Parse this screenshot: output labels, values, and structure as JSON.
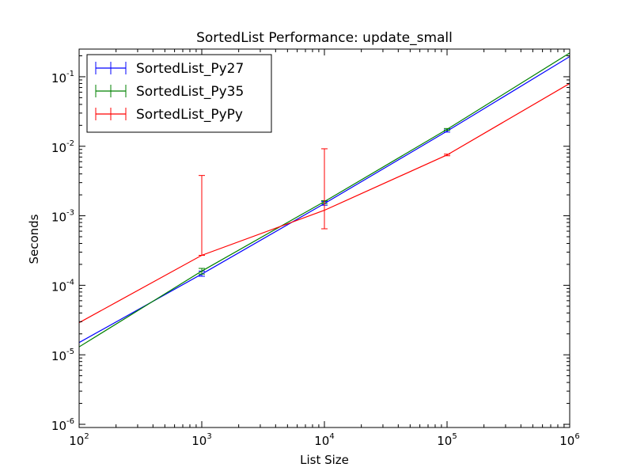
{
  "chart_data": {
    "type": "line",
    "title": "SortedList Performance: update_small",
    "xlabel": "List Size",
    "ylabel": "Seconds",
    "xscale": "log",
    "yscale": "log",
    "xlim": [
      100,
      1000000
    ],
    "ylim": [
      9e-07,
      0.25
    ],
    "x_ticks": [
      {
        "value": 100,
        "base": "10",
        "exp": "2"
      },
      {
        "value": 1000,
        "base": "10",
        "exp": "3"
      },
      {
        "value": 10000,
        "base": "10",
        "exp": "4"
      },
      {
        "value": 100000,
        "base": "10",
        "exp": "5"
      },
      {
        "value": 1000000,
        "base": "10",
        "exp": "6"
      }
    ],
    "y_ticks": [
      {
        "value": 1e-06,
        "base": "10",
        "exp": "-6"
      },
      {
        "value": 1e-05,
        "base": "10",
        "exp": "-5"
      },
      {
        "value": 0.0001,
        "base": "10",
        "exp": "-4"
      },
      {
        "value": 0.001,
        "base": "10",
        "exp": "-3"
      },
      {
        "value": 0.01,
        "base": "10",
        "exp": "-2"
      },
      {
        "value": 0.1,
        "base": "10",
        "exp": "-1"
      }
    ],
    "legend_position": "top-left",
    "grid": false,
    "x": [
      100,
      1000,
      10000,
      100000,
      1000000
    ],
    "series": [
      {
        "name": "SortedList_Py27",
        "color": "#0000ff",
        "values": [
          1.5e-05,
          0.000145,
          0.0015,
          0.0165,
          0.195
        ],
        "err_low": [
          1.5e-05,
          0.000135,
          0.00142,
          0.016,
          0.195
        ],
        "err_high": [
          1.5e-05,
          0.00016,
          0.0016,
          0.0172,
          0.195
        ]
      },
      {
        "name": "SortedList_Py35",
        "color": "#008000",
        "values": [
          1.3e-05,
          0.00016,
          0.0016,
          0.0175,
          0.22
        ],
        "err_low": [
          1.3e-05,
          0.000145,
          0.0015,
          0.017,
          0.22
        ],
        "err_high": [
          1.3e-05,
          0.000175,
          0.00165,
          0.018,
          0.22
        ]
      },
      {
        "name": "SortedList_PyPy",
        "color": "#ff0000",
        "values": [
          2.9e-05,
          0.00027,
          0.0012,
          0.0075,
          0.08
        ],
        "err_low": [
          2.9e-05,
          0.00027,
          0.00065,
          0.0073,
          0.08
        ],
        "err_high": [
          2.9e-05,
          0.0038,
          0.0092,
          0.0077,
          0.08
        ]
      }
    ]
  }
}
